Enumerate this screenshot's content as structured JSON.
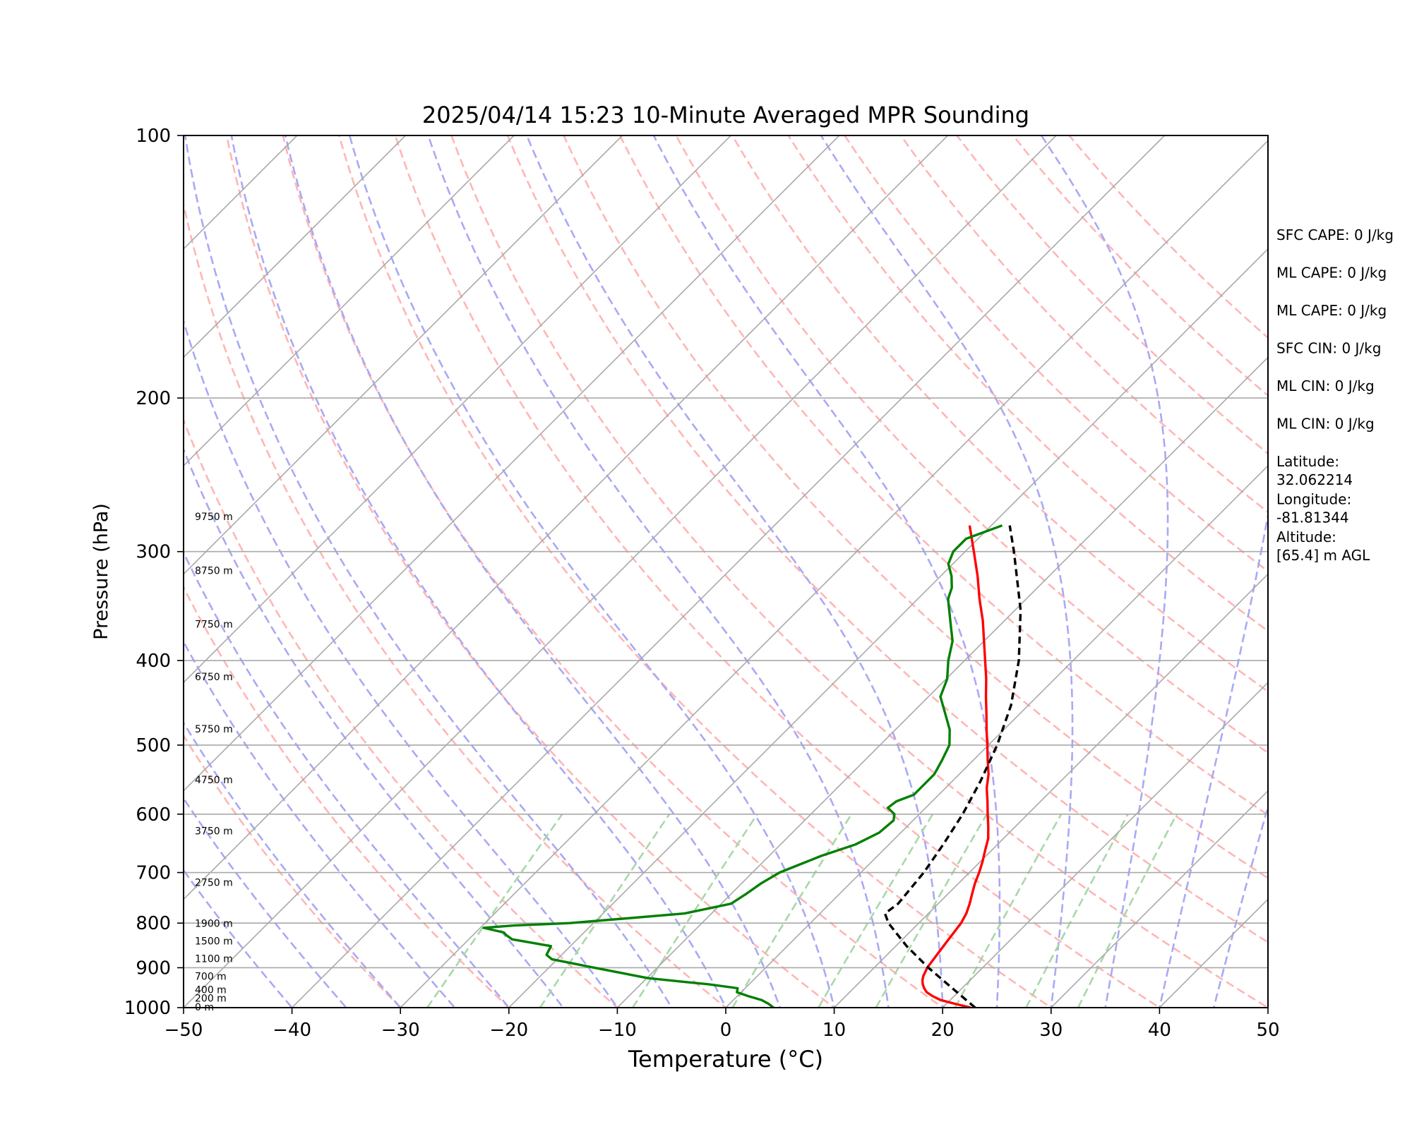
{
  "chart_data": {
    "type": "skew-t",
    "title": "2025/04/14 15:23 10-Minute Averaged MPR Sounding",
    "xlabel": "Temperature (°C)",
    "ylabel": "Pressure (hPa)",
    "xlim": [
      -50,
      50
    ],
    "ylim": [
      1000,
      100
    ],
    "y_scale": "log",
    "x_ticks": [
      "−50",
      "−40",
      "−30",
      "−20",
      "−10",
      "0",
      "10",
      "20",
      "30",
      "40",
      "50"
    ],
    "y_ticks": [
      "100",
      "200",
      "300",
      "400",
      "500",
      "600",
      "700",
      "800",
      "900",
      "1000"
    ],
    "grid": "horizontal at pressure ticks",
    "series": [
      {
        "role": "temperature",
        "color": "#ff0000",
        "points": [
          [
            1000,
            22.6
          ],
          [
            990,
            20.8
          ],
          [
            980,
            19.1
          ],
          [
            970,
            18.0
          ],
          [
            960,
            17.1
          ],
          [
            950,
            16.5
          ],
          [
            940,
            16.0
          ],
          [
            930,
            15.6
          ],
          [
            920,
            15.3
          ],
          [
            910,
            15.1
          ],
          [
            900,
            14.9
          ],
          [
            890,
            14.8
          ],
          [
            880,
            14.7
          ],
          [
            870,
            14.6
          ],
          [
            860,
            14.5
          ],
          [
            850,
            14.4
          ],
          [
            840,
            14.3
          ],
          [
            830,
            14.2
          ],
          [
            820,
            14.1
          ],
          [
            800,
            13.9
          ],
          [
            780,
            13.5
          ],
          [
            760,
            12.9
          ],
          [
            740,
            12.2
          ],
          [
            720,
            11.5
          ],
          [
            700,
            10.9
          ],
          [
            680,
            10.2
          ],
          [
            660,
            9.4
          ],
          [
            640,
            8.6
          ],
          [
            620,
            7.5
          ],
          [
            600,
            6.3
          ],
          [
            580,
            5.1
          ],
          [
            560,
            3.8
          ],
          [
            540,
            2.7
          ],
          [
            520,
            1.3
          ],
          [
            500,
            -0.1
          ],
          [
            480,
            -1.6
          ],
          [
            460,
            -3.1
          ],
          [
            440,
            -4.7
          ],
          [
            420,
            -6.3
          ],
          [
            400,
            -8.1
          ],
          [
            380,
            -10.0
          ],
          [
            360,
            -12.0
          ],
          [
            340,
            -14.3
          ],
          [
            320,
            -16.6
          ],
          [
            300,
            -19.2
          ],
          [
            280,
            -22.0
          ]
        ]
      },
      {
        "role": "dewpoint",
        "color": "#008000",
        "points": [
          [
            1000,
            4.4
          ],
          [
            990,
            3.6
          ],
          [
            980,
            2.6
          ],
          [
            970,
            1.0
          ],
          [
            960,
            -0.4
          ],
          [
            950,
            -0.7
          ],
          [
            940,
            -3.8
          ],
          [
            935,
            -5.9
          ],
          [
            925,
            -9.9
          ],
          [
            900,
            -15.8
          ],
          [
            880,
            -20.5
          ],
          [
            870,
            -21.4
          ],
          [
            850,
            -21.8
          ],
          [
            835,
            -26.0
          ],
          [
            825,
            -27.0
          ],
          [
            820,
            -27.4
          ],
          [
            810,
            -29.7
          ],
          [
            805,
            -27.1
          ],
          [
            800,
            -22.2
          ],
          [
            790,
            -17.4
          ],
          [
            780,
            -12.5
          ],
          [
            760,
            -9.1
          ],
          [
            740,
            -8.6
          ],
          [
            720,
            -8.2
          ],
          [
            700,
            -7.5
          ],
          [
            670,
            -5.2
          ],
          [
            650,
            -3.1
          ],
          [
            630,
            -2.0
          ],
          [
            610,
            -1.8
          ],
          [
            600,
            -2.3
          ],
          [
            590,
            -3.5
          ],
          [
            580,
            -3.3
          ],
          [
            570,
            -2.3
          ],
          [
            560,
            -2.3
          ],
          [
            540,
            -2.3
          ],
          [
            520,
            -2.9
          ],
          [
            500,
            -3.6
          ],
          [
            480,
            -5.0
          ],
          [
            460,
            -6.9
          ],
          [
            440,
            -8.9
          ],
          [
            420,
            -9.9
          ],
          [
            400,
            -11.5
          ],
          [
            380,
            -12.9
          ],
          [
            360,
            -15.0
          ],
          [
            340,
            -17.2
          ],
          [
            330,
            -17.9
          ],
          [
            320,
            -19.0
          ],
          [
            310,
            -20.4
          ],
          [
            300,
            -21.1
          ],
          [
            290,
            -21.1
          ],
          [
            280,
            -19.0
          ]
        ]
      },
      {
        "role": "parcel",
        "color": "#000000",
        "dashed": true,
        "points": [
          [
            1000,
            23.0
          ],
          [
            950,
            19.1
          ],
          [
            900,
            15.0
          ],
          [
            850,
            11.0
          ],
          [
            800,
            7.2
          ],
          [
            780,
            6.0
          ],
          [
            760,
            6.3
          ],
          [
            700,
            5.8
          ],
          [
            650,
            5.0
          ],
          [
            600,
            4.0
          ],
          [
            550,
            2.6
          ],
          [
            500,
            0.8
          ],
          [
            450,
            -1.6
          ],
          [
            400,
            -5.0
          ],
          [
            350,
            -9.5
          ],
          [
            300,
            -15.5
          ],
          [
            280,
            -18.3
          ]
        ]
      }
    ],
    "height_labels": [
      {
        "p": 1000,
        "label": "0 m"
      },
      {
        "p": 977,
        "label": "200 m"
      },
      {
        "p": 955,
        "label": "400 m"
      },
      {
        "p": 922,
        "label": "700 m"
      },
      {
        "p": 880,
        "label": "1100 m"
      },
      {
        "p": 840,
        "label": "1500 m"
      },
      {
        "p": 802,
        "label": "1900 m"
      },
      {
        "p": 720,
        "label": "2750 m"
      },
      {
        "p": 628,
        "label": "3750 m"
      },
      {
        "p": 549,
        "label": "4750 m"
      },
      {
        "p": 480,
        "label": "5750 m"
      },
      {
        "p": 418,
        "label": "6750 m"
      },
      {
        "p": 364,
        "label": "7750 m"
      },
      {
        "p": 316,
        "label": "8750 m"
      },
      {
        "p": 274,
        "label": "9750 m"
      }
    ],
    "reference_lines": {
      "isotherms": {
        "color": "#a9a9a9",
        "values": [
          -120,
          -110,
          -100,
          -90,
          -80,
          -70,
          -60,
          -50,
          -40,
          -30,
          -20,
          -10,
          0,
          10,
          20,
          30,
          40,
          50
        ]
      },
      "dry_adiabats": {
        "color": "#ffb6b6",
        "values": [
          -30,
          -20,
          -10,
          0,
          10,
          20,
          30,
          40,
          50,
          60,
          70,
          80,
          90,
          100,
          110,
          120,
          130,
          140,
          150,
          160
        ]
      },
      "moist_adiabats": {
        "color": "#a9a9f5",
        "values": [
          -40,
          -35,
          -30,
          -25,
          -20,
          -15,
          -10,
          -5,
          0,
          5,
          10,
          15,
          20,
          25,
          30,
          35,
          40,
          45
        ]
      },
      "mixing_ratio": {
        "color": "#a8d8a8",
        "values": [
          0.4,
          1,
          2,
          4,
          7,
          10,
          16,
          24,
          32
        ]
      }
    },
    "annotations": [
      "SFC CAPE: 0 J/kg",
      "ML CAPE: 0 J/kg",
      "ML CAPE: 0 J/kg",
      "SFC CIN: 0 J/kg",
      "ML CIN: 0 J/kg",
      "ML CIN: 0 J/kg",
      [
        "Latitude:",
        "32.062214"
      ],
      [
        "Longitude:",
        "-81.81344"
      ],
      [
        "Altitude:",
        "[65.4] m AGL"
      ]
    ]
  }
}
